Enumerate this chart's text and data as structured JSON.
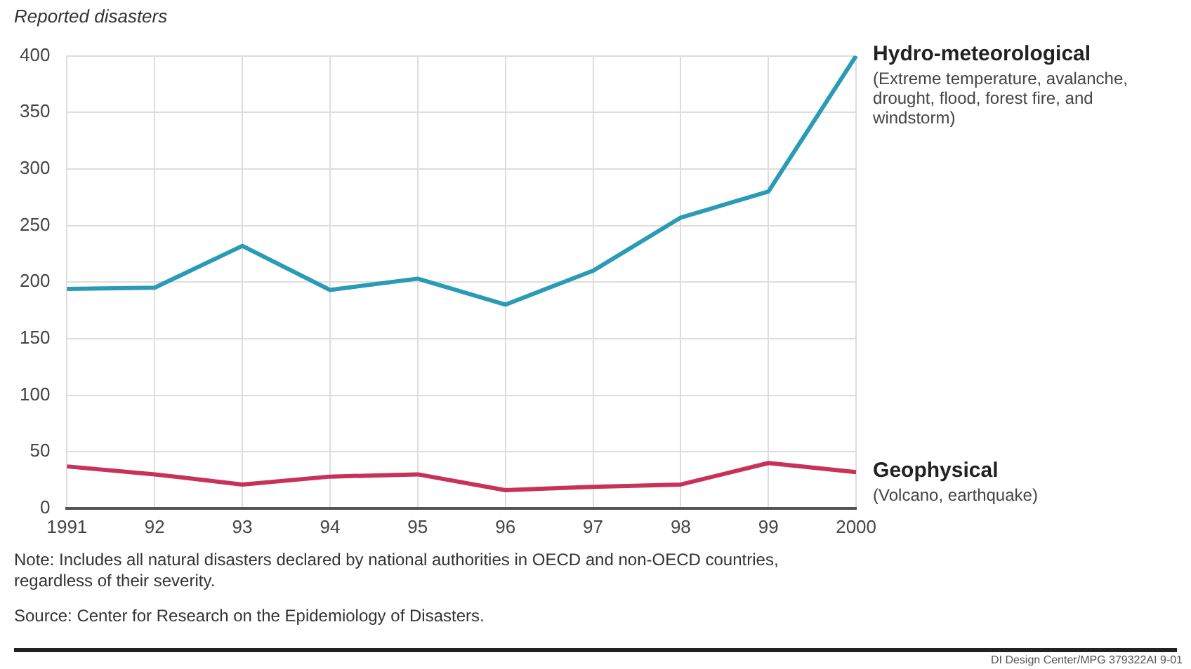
{
  "chart_data": {
    "type": "line",
    "ylabel": "Reported disasters",
    "categories": [
      "1991",
      "92",
      "93",
      "94",
      "95",
      "96",
      "97",
      "98",
      "99",
      "2000"
    ],
    "series": [
      {
        "name": "Hydro-meteorological",
        "color": "#2a9bb5",
        "values": [
          194,
          195,
          232,
          193,
          203,
          180,
          210,
          257,
          280,
          400
        ]
      },
      {
        "name": "Geophysical",
        "color": "#c8325a",
        "values": [
          37,
          30,
          21,
          28,
          30,
          16,
          19,
          21,
          40,
          32
        ]
      }
    ],
    "ylim": [
      0,
      400
    ],
    "yticks": [
      0,
      50,
      100,
      150,
      200,
      250,
      300,
      350,
      400
    ],
    "grid": true,
    "legend": false,
    "marker": "none",
    "line_style": "solid",
    "annotations": [
      {
        "text": "(Extreme temperature, avalanche, drought, flood, forest fire, and windstorm)",
        "x": "2000",
        "y": 400
      },
      {
        "text": "(Volcano, earthquake)",
        "x": "2000",
        "y": 32
      },
      "Note: Includes all natural disasters declared by national authorities in OECD and non-OECD countries, regardless of their severity.",
      "Source: Center for Research on the Epidemiology of Disasters.",
      "DI Design Center/MPG 379322AI 9-01"
    ]
  }
}
